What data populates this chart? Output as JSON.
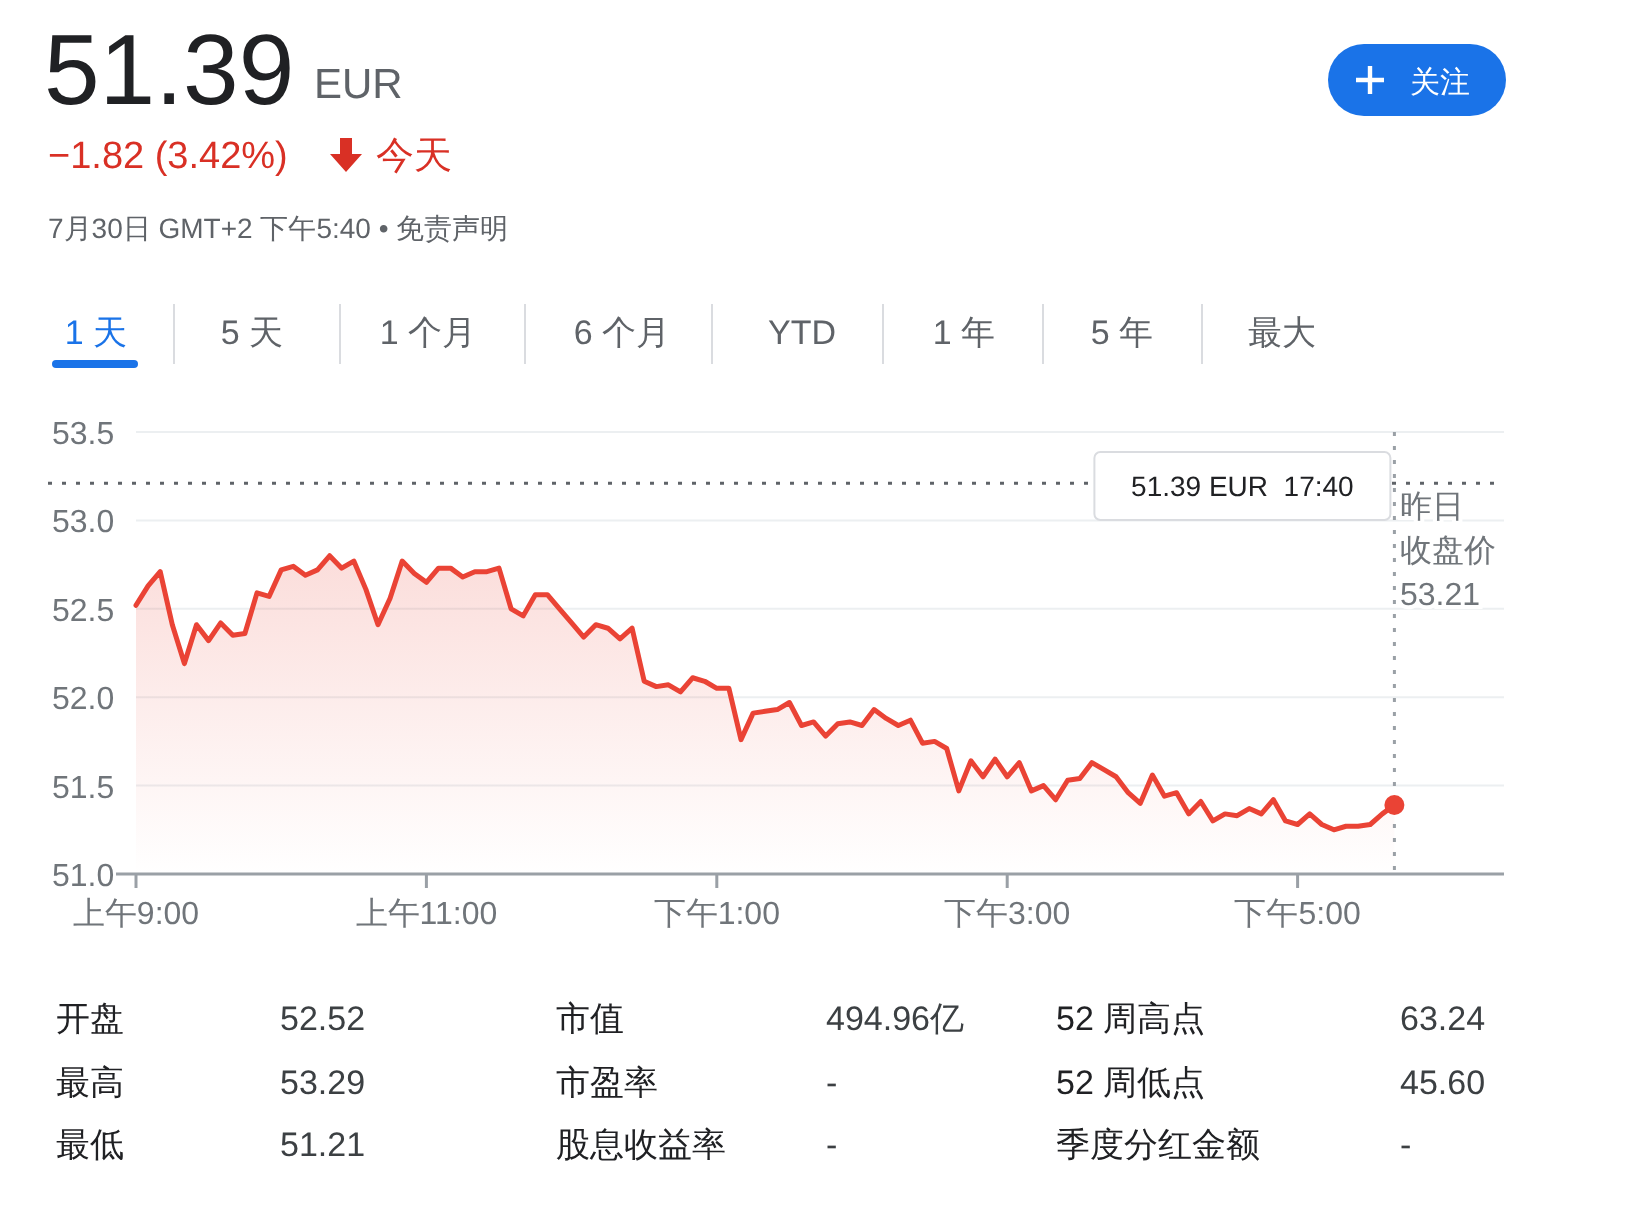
{
  "chart_data": {
    "type": "area",
    "title": "51.39",
    "annotations": [
      "EUR",
      "−1.82 (3.42%)",
      "今天",
      "7月30日 GMT+2 下午5:40 • 免责声明",
      "关注",
      "1 天",
      "5 天",
      "1 个月",
      "6 个月",
      "YTD",
      "1 年",
      "5 年",
      "最大",
      "开盘",
      "52.52",
      "市值",
      "494.96亿",
      "52 周高点",
      "63.24",
      "最高",
      "53.29",
      "市盈率",
      "-",
      "52 周低点",
      "45.60",
      "最低",
      "51.21",
      "股息收益率",
      "-",
      "季度分红金额",
      "-",
      "51.39 EUR  17:40"
    ],
    "categories": [
      "上午9:00",
      null,
      null,
      null,
      null,
      null,
      null,
      null,
      null,
      null,
      null,
      null,
      null,
      null,
      null,
      null,
      null,
      null,
      null,
      null,
      null,
      null,
      null,
      null,
      "上午11:00",
      null,
      null,
      null,
      null,
      null,
      null,
      null,
      null,
      null,
      null,
      null,
      null,
      null,
      null,
      null,
      null,
      null,
      null,
      null,
      null,
      null,
      null,
      null,
      "下午1:00",
      null,
      null,
      null,
      null,
      null,
      null,
      null,
      null,
      null,
      null,
      null,
      null,
      null,
      null,
      null,
      null,
      null,
      null,
      null,
      null,
      null,
      null,
      null,
      "下午3:00",
      null,
      null,
      null,
      null,
      null,
      null,
      null,
      null,
      null,
      null,
      null,
      null,
      null,
      null,
      null,
      null,
      null,
      null,
      null,
      null,
      null,
      null,
      null,
      "下午5:00",
      null,
      null,
      null,
      null,
      null,
      null,
      null,
      null
    ],
    "series": [
      {
        "color": "#ea4335",
        "values": [
          52.52,
          52.63,
          52.71,
          52.41,
          52.19,
          52.41,
          52.32,
          52.42,
          52.35,
          52.36,
          52.59,
          52.57,
          52.72,
          52.74,
          52.69,
          52.72,
          52.8,
          52.73,
          52.77,
          52.61,
          52.41,
          52.56,
          52.77,
          52.7,
          52.65,
          52.73,
          52.73,
          52.68,
          52.71,
          52.71,
          52.73,
          52.5,
          52.46,
          52.58,
          52.58,
          52.5,
          52.42,
          52.34,
          52.41,
          52.39,
          52.33,
          52.39,
          52.09,
          52.06,
          52.07,
          52.03,
          52.11,
          52.09,
          52.05,
          52.05,
          51.76,
          51.91,
          51.92,
          51.93,
          51.97,
          51.84,
          51.86,
          51.78,
          51.85,
          51.86,
          51.84,
          51.93,
          51.88,
          51.84,
          51.87,
          51.74,
          51.75,
          51.71,
          51.47,
          51.64,
          51.55,
          51.65,
          51.55,
          51.63,
          51.47,
          51.5,
          51.42,
          51.53,
          51.54,
          51.63,
          51.59,
          51.55,
          51.46,
          51.4,
          51.56,
          51.44,
          51.46,
          51.34,
          51.41,
          51.3,
          51.34,
          51.33,
          51.37,
          51.34,
          51.42,
          51.3,
          51.28,
          51.34,
          51.28,
          51.25,
          51.27,
          51.27,
          51.28,
          51.34,
          51.39
        ]
      }
    ],
    "ylim": [
      51.0,
      53.5
    ],
    "yticks": [
      {
        "value": 51,
        "label": "51.0"
      },
      {
        "value": 51.5,
        "label": "51.5"
      },
      {
        "value": 52,
        "label": "52.0"
      },
      {
        "value": 52.5,
        "label": "52.5"
      },
      {
        "value": 53,
        "label": "53.0"
      },
      {
        "value": 53.5,
        "label": "53.5"
      }
    ],
    "ref_lines": [
      {
        "axis": "y",
        "value": 53.21,
        "label": "昨日收盘价\n53.21",
        "color": "#5f6368",
        "line_style": "dotted"
      }
    ],
    "grid": "y"
  }
}
